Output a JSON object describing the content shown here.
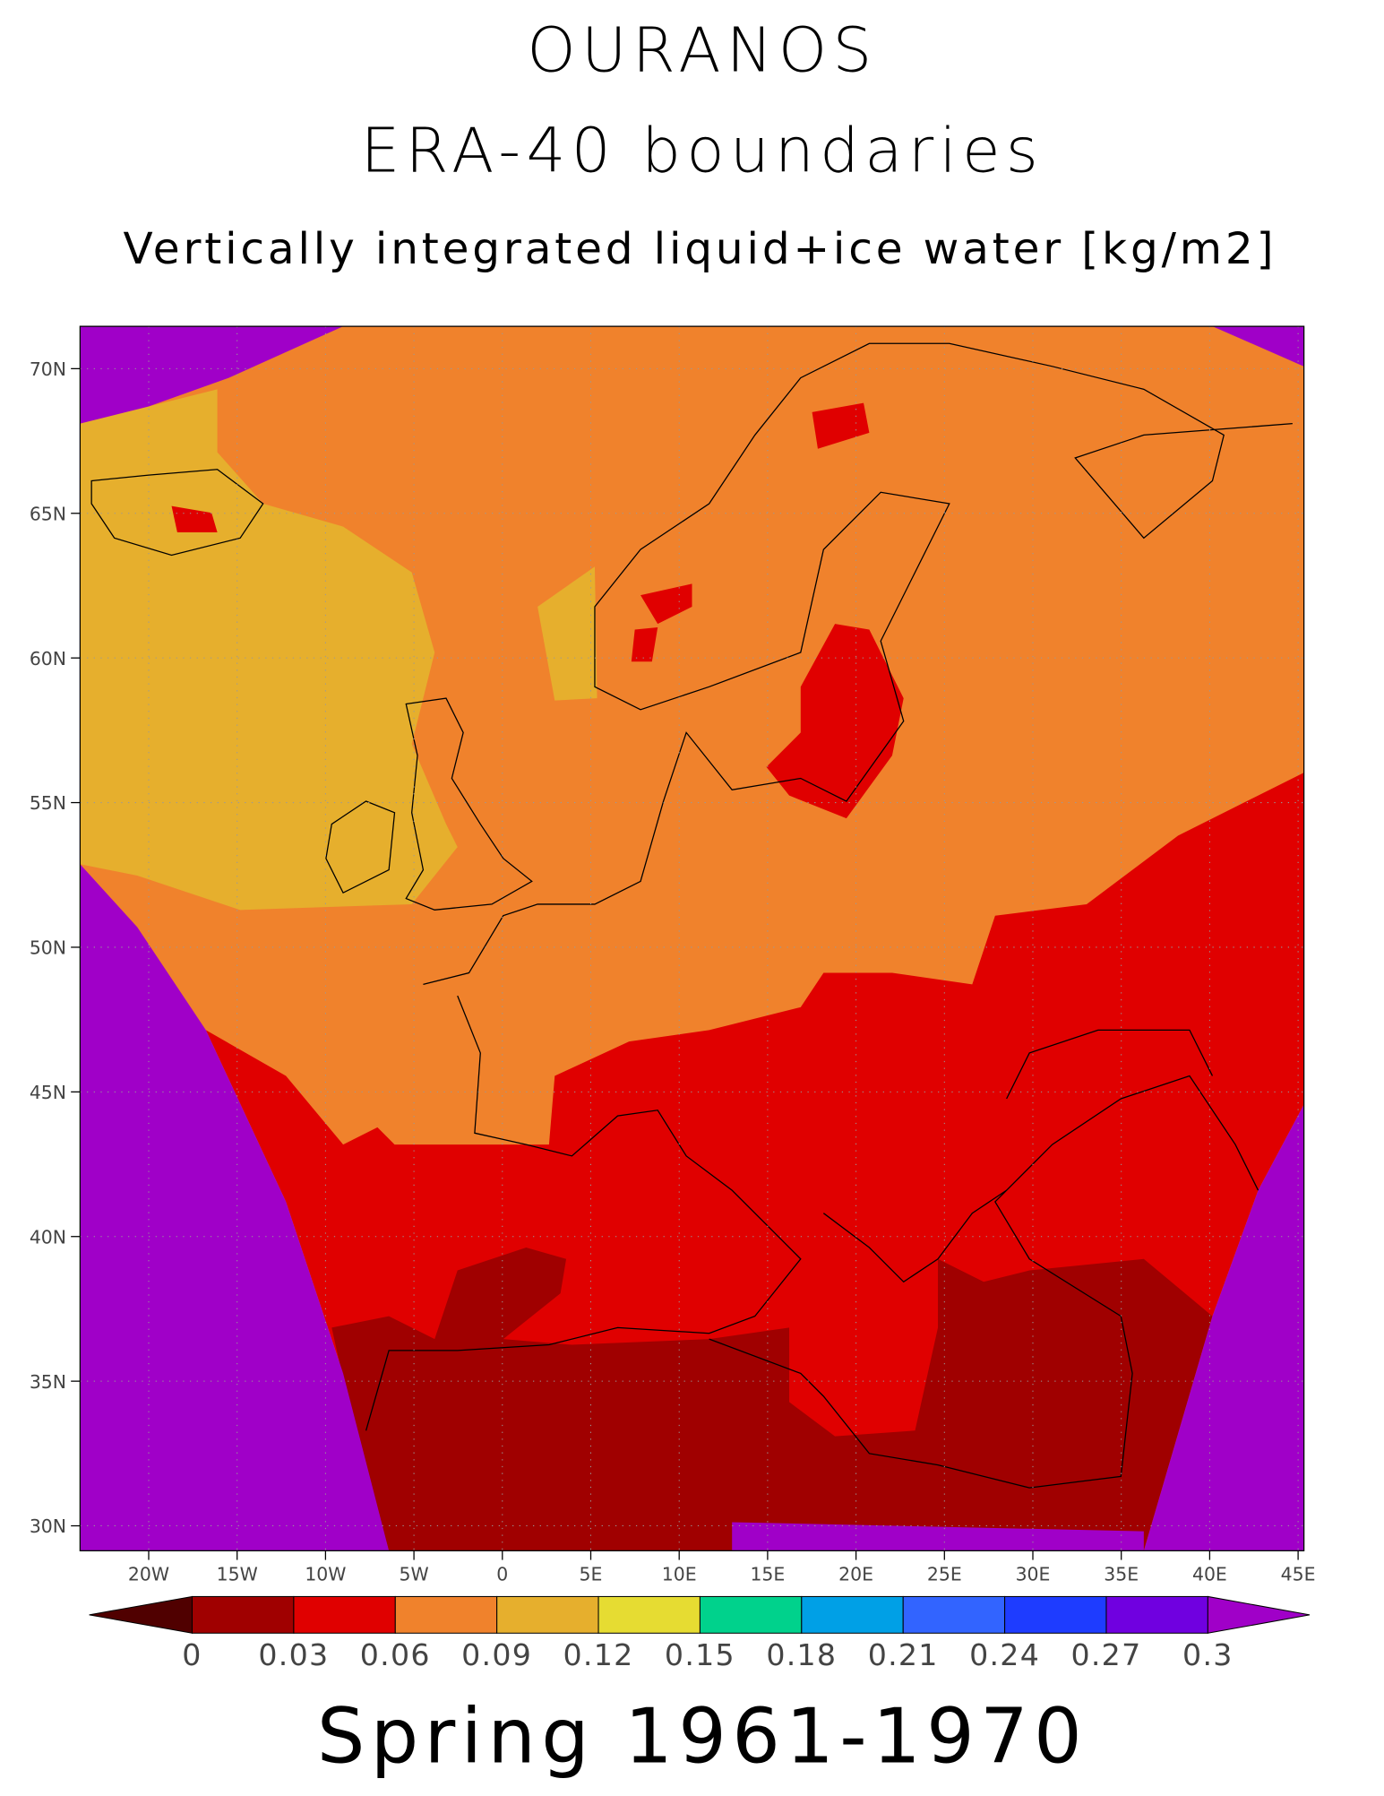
{
  "header": {
    "lines": [
      "OURANOS",
      "ERA-40 boundaries"
    ],
    "subtitle": "Vertically integrated liquid+ice water [kg/m2]"
  },
  "map": {
    "lat_ticks": [
      "70N",
      "65N",
      "60N",
      "55N",
      "50N",
      "45N",
      "40N",
      "35N",
      "30N"
    ],
    "lon_ticks": [
      "20W",
      "15W",
      "10W",
      "5W",
      "0",
      "5E",
      "10E",
      "15E",
      "20E",
      "25E",
      "30E",
      "35E",
      "40E",
      "45E"
    ]
  },
  "colorbar": {
    "labels": [
      "0",
      "0.03",
      "0.06",
      "0.09",
      "0.12",
      "0.15",
      "0.18",
      "0.21",
      "0.24",
      "0.27",
      "0.3"
    ],
    "under_color": "#500000",
    "colors": [
      "#a00000",
      "#e00000",
      "#f0822c",
      "#e6af2d",
      "#e6dc32",
      "#00d28c",
      "#00a0e6",
      "#3264ff",
      "#1e3cff",
      "#7000e0"
    ],
    "over_color": "#a000c8"
  },
  "footer": "Spring 1961-1970"
}
